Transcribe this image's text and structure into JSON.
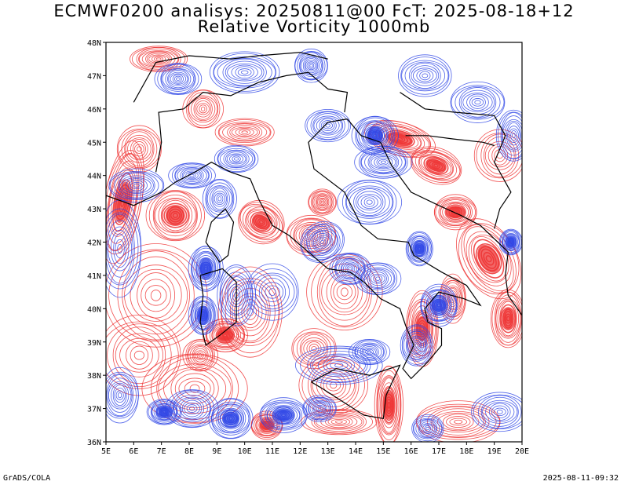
{
  "title_line1": "ECMWF0200 analisys: 20250811@00 FcT: 2025-08-18+12",
  "title_line2": "Relative Vorticity 1000mb",
  "lat_labels": [
    "48N",
    "47N",
    "46N",
    "45N",
    "44N",
    "43N",
    "42N",
    "41N",
    "40N",
    "39N",
    "38N",
    "37N",
    "36N"
  ],
  "lon_labels": [
    "5E",
    "6E",
    "7E",
    "8E",
    "9E",
    "10E",
    "11E",
    "12E",
    "13E",
    "14E",
    "15E",
    "16E",
    "17E",
    "18E",
    "19E",
    "20E"
  ],
  "footer_left": "GrADS/COLA",
  "footer_right": "2025-08-11-09:32",
  "colors": {
    "positive": "#ee3333",
    "negative": "#2f46e6",
    "coast": "#000000",
    "frame": "#000000"
  }
}
